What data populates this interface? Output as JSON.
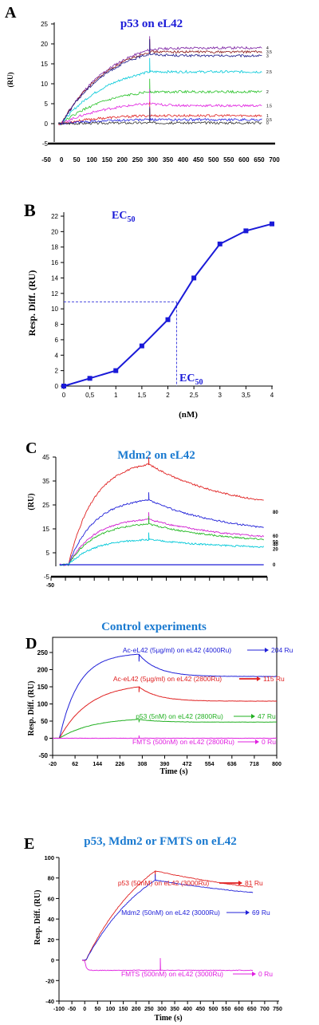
{
  "figure": {
    "panels": [
      "A",
      "B",
      "C",
      "D",
      "E"
    ]
  },
  "chart_data": [
    {
      "panel": "A",
      "type": "line",
      "title": "p53 on eL42",
      "ylabel": "(RU)",
      "xlabel": "",
      "xlim": [
        -50,
        700
      ],
      "ylim": [
        -5,
        25
      ],
      "xticks": [
        "-50",
        "0",
        "50",
        "100",
        "150",
        "200",
        "250",
        "300",
        "350",
        "400",
        "450",
        "500",
        "550",
        "600",
        "650",
        "700"
      ],
      "yticks": [
        "-5",
        "0",
        "5",
        "10",
        "15",
        "20",
        "25"
      ],
      "series": [
        {
          "name": "4",
          "color": "#7a1fa2",
          "assoc_end": 18.5,
          "dissoc_end": 19.0
        },
        {
          "name": "3.5",
          "color": "#8b1a1a",
          "assoc_end": 18.0,
          "dissoc_end": 18.0
        },
        {
          "name": "3",
          "color": "#1a1a8c",
          "assoc_end": 17.5,
          "dissoc_end": 17.0
        },
        {
          "name": "2.5",
          "color": "#00c8d8",
          "assoc_end": 13.0,
          "dissoc_end": 13.0
        },
        {
          "name": "2",
          "color": "#22c022",
          "assoc_end": 8.0,
          "dissoc_end": 8.0
        },
        {
          "name": "1.5",
          "color": "#e020e0",
          "assoc_end": 5.0,
          "dissoc_end": 4.5
        },
        {
          "name": "1",
          "color": "#e02020",
          "assoc_end": 2.0,
          "dissoc_end": 2.0
        },
        {
          "name": "0.5",
          "color": "#2020e0",
          "assoc_end": 1.0,
          "dissoc_end": 1.0
        },
        {
          "name": "0",
          "color": "#303030",
          "assoc_end": 0.2,
          "dissoc_end": 0.2
        }
      ]
    },
    {
      "panel": "B",
      "type": "line",
      "title": "EC50",
      "title_main": "EC",
      "title_sub": "50",
      "xlabel": "(nM)",
      "ylabel": "Resp. Diff. (RU)",
      "xlim": [
        0,
        4
      ],
      "ylim": [
        0,
        22
      ],
      "xticks": [
        "0",
        "0,5",
        "1",
        "1,5",
        "2",
        "2,5",
        "3",
        "3,5",
        "4"
      ],
      "yticks": [
        "0",
        "2",
        "4",
        "6",
        "8",
        "10",
        "12",
        "14",
        "16",
        "18",
        "20",
        "22"
      ],
      "x": [
        0,
        0.5,
        1,
        1.5,
        2,
        2.5,
        3,
        3.5,
        4
      ],
      "y": [
        0,
        1,
        2,
        5.2,
        8.6,
        14,
        18.4,
        20.1,
        21
      ],
      "ec50": {
        "x": 2.17,
        "y": 10.9
      },
      "annotation_main": "EC",
      "annotation_sub": "50",
      "color": "#1a1ad8"
    },
    {
      "panel": "C",
      "type": "line",
      "title": "Mdm2 on eL42",
      "ylabel": "(RU)",
      "xlim": [
        -50,
        700
      ],
      "ylim": [
        -5,
        45
      ],
      "xticks": [
        "-50"
      ],
      "yticks": [
        "-5",
        "5",
        "15",
        "25",
        "35",
        "45"
      ],
      "series": [
        {
          "name": "80",
          "color": "#e02020",
          "assoc_end": 42,
          "dissoc_end": 22
        },
        {
          "name": "60",
          "color": "#2020d8",
          "assoc_end": 27,
          "dissoc_end": 12
        },
        {
          "name": "50",
          "color": "#d020d0",
          "assoc_end": 19,
          "dissoc_end": 9.5
        },
        {
          "name": "40",
          "color": "#22b822",
          "assoc_end": 17,
          "dissoc_end": 8.5
        },
        {
          "name": "20",
          "color": "#00c8d8",
          "assoc_end": 10.5,
          "dissoc_end": 6.5
        },
        {
          "name": "0",
          "color": "#2020d8",
          "assoc_end": 0,
          "dissoc_end": 0
        }
      ]
    },
    {
      "panel": "D",
      "type": "line",
      "title": "Control experiments",
      "xlabel": "Time (s)",
      "ylabel": "Resp. Diff. (RU)",
      "xlim": [
        -20,
        800
      ],
      "ylim": [
        -50,
        300
      ],
      "xticks": [
        "-20",
        "62",
        "144",
        "226",
        "308",
        "390",
        "472",
        "554",
        "636",
        "718",
        "800"
      ],
      "yticks": [
        "-50",
        "0",
        "50",
        "100",
        "150",
        "200",
        "250",
        "300"
      ],
      "series": [
        {
          "name": "Ac-eL42 (5µg/ml) on eL42 (4000Ru)",
          "result": "204 Ru",
          "color": "#2020d8",
          "assoc_end": 245,
          "dissoc_end": 180
        },
        {
          "name": "Ac-eL42 (5µg/ml) on eL42 (2800Ru)",
          "result": "115 Ru",
          "color": "#e02020",
          "assoc_end": 150,
          "dissoc_end": 108
        },
        {
          "name": "p53 (5nM) on eL42 (2800Ru)",
          "result": "47 Ru",
          "color": "#22b022",
          "assoc_end": 55,
          "dissoc_end": 47
        },
        {
          "name": "FMTS (500nM) on eL42 (2800Ru)",
          "result": "0 Ru",
          "color": "#e020e0",
          "assoc_end": 0,
          "dissoc_end": 0
        }
      ]
    },
    {
      "panel": "E",
      "type": "line",
      "title": "p53, Mdm2 or FMTS on eL42",
      "xlabel": "Time (s)",
      "ylabel": "Resp. Diff. (RU)",
      "xlim": [
        -100,
        750
      ],
      "ylim": [
        -40,
        100
      ],
      "xticks": [
        "-100",
        "-50",
        "0",
        "50",
        "100",
        "150",
        "200",
        "250",
        "300",
        "350",
        "400",
        "450",
        "500",
        "550",
        "600",
        "650",
        "700",
        "750"
      ],
      "yticks": [
        "-40",
        "-20",
        "0",
        "20",
        "40",
        "60",
        "80",
        "100"
      ],
      "series": [
        {
          "name": "p53 (50nM) on eL42 (3000Ru)",
          "result": "81 Ru",
          "color": "#e02020",
          "assoc_end": 87,
          "dissoc_end": 53
        },
        {
          "name": "Mdm2 (50nM) on eL42 (3000Ru)",
          "result": "69 Ru",
          "color": "#2020d8",
          "assoc_end": 78,
          "dissoc_end": 52
        },
        {
          "name": "FMTS (500nM) on eL42 (3000Ru)",
          "result": "0 Ru",
          "color": "#e020e0",
          "assoc_end": -10,
          "dissoc_end": -10
        }
      ]
    }
  ]
}
